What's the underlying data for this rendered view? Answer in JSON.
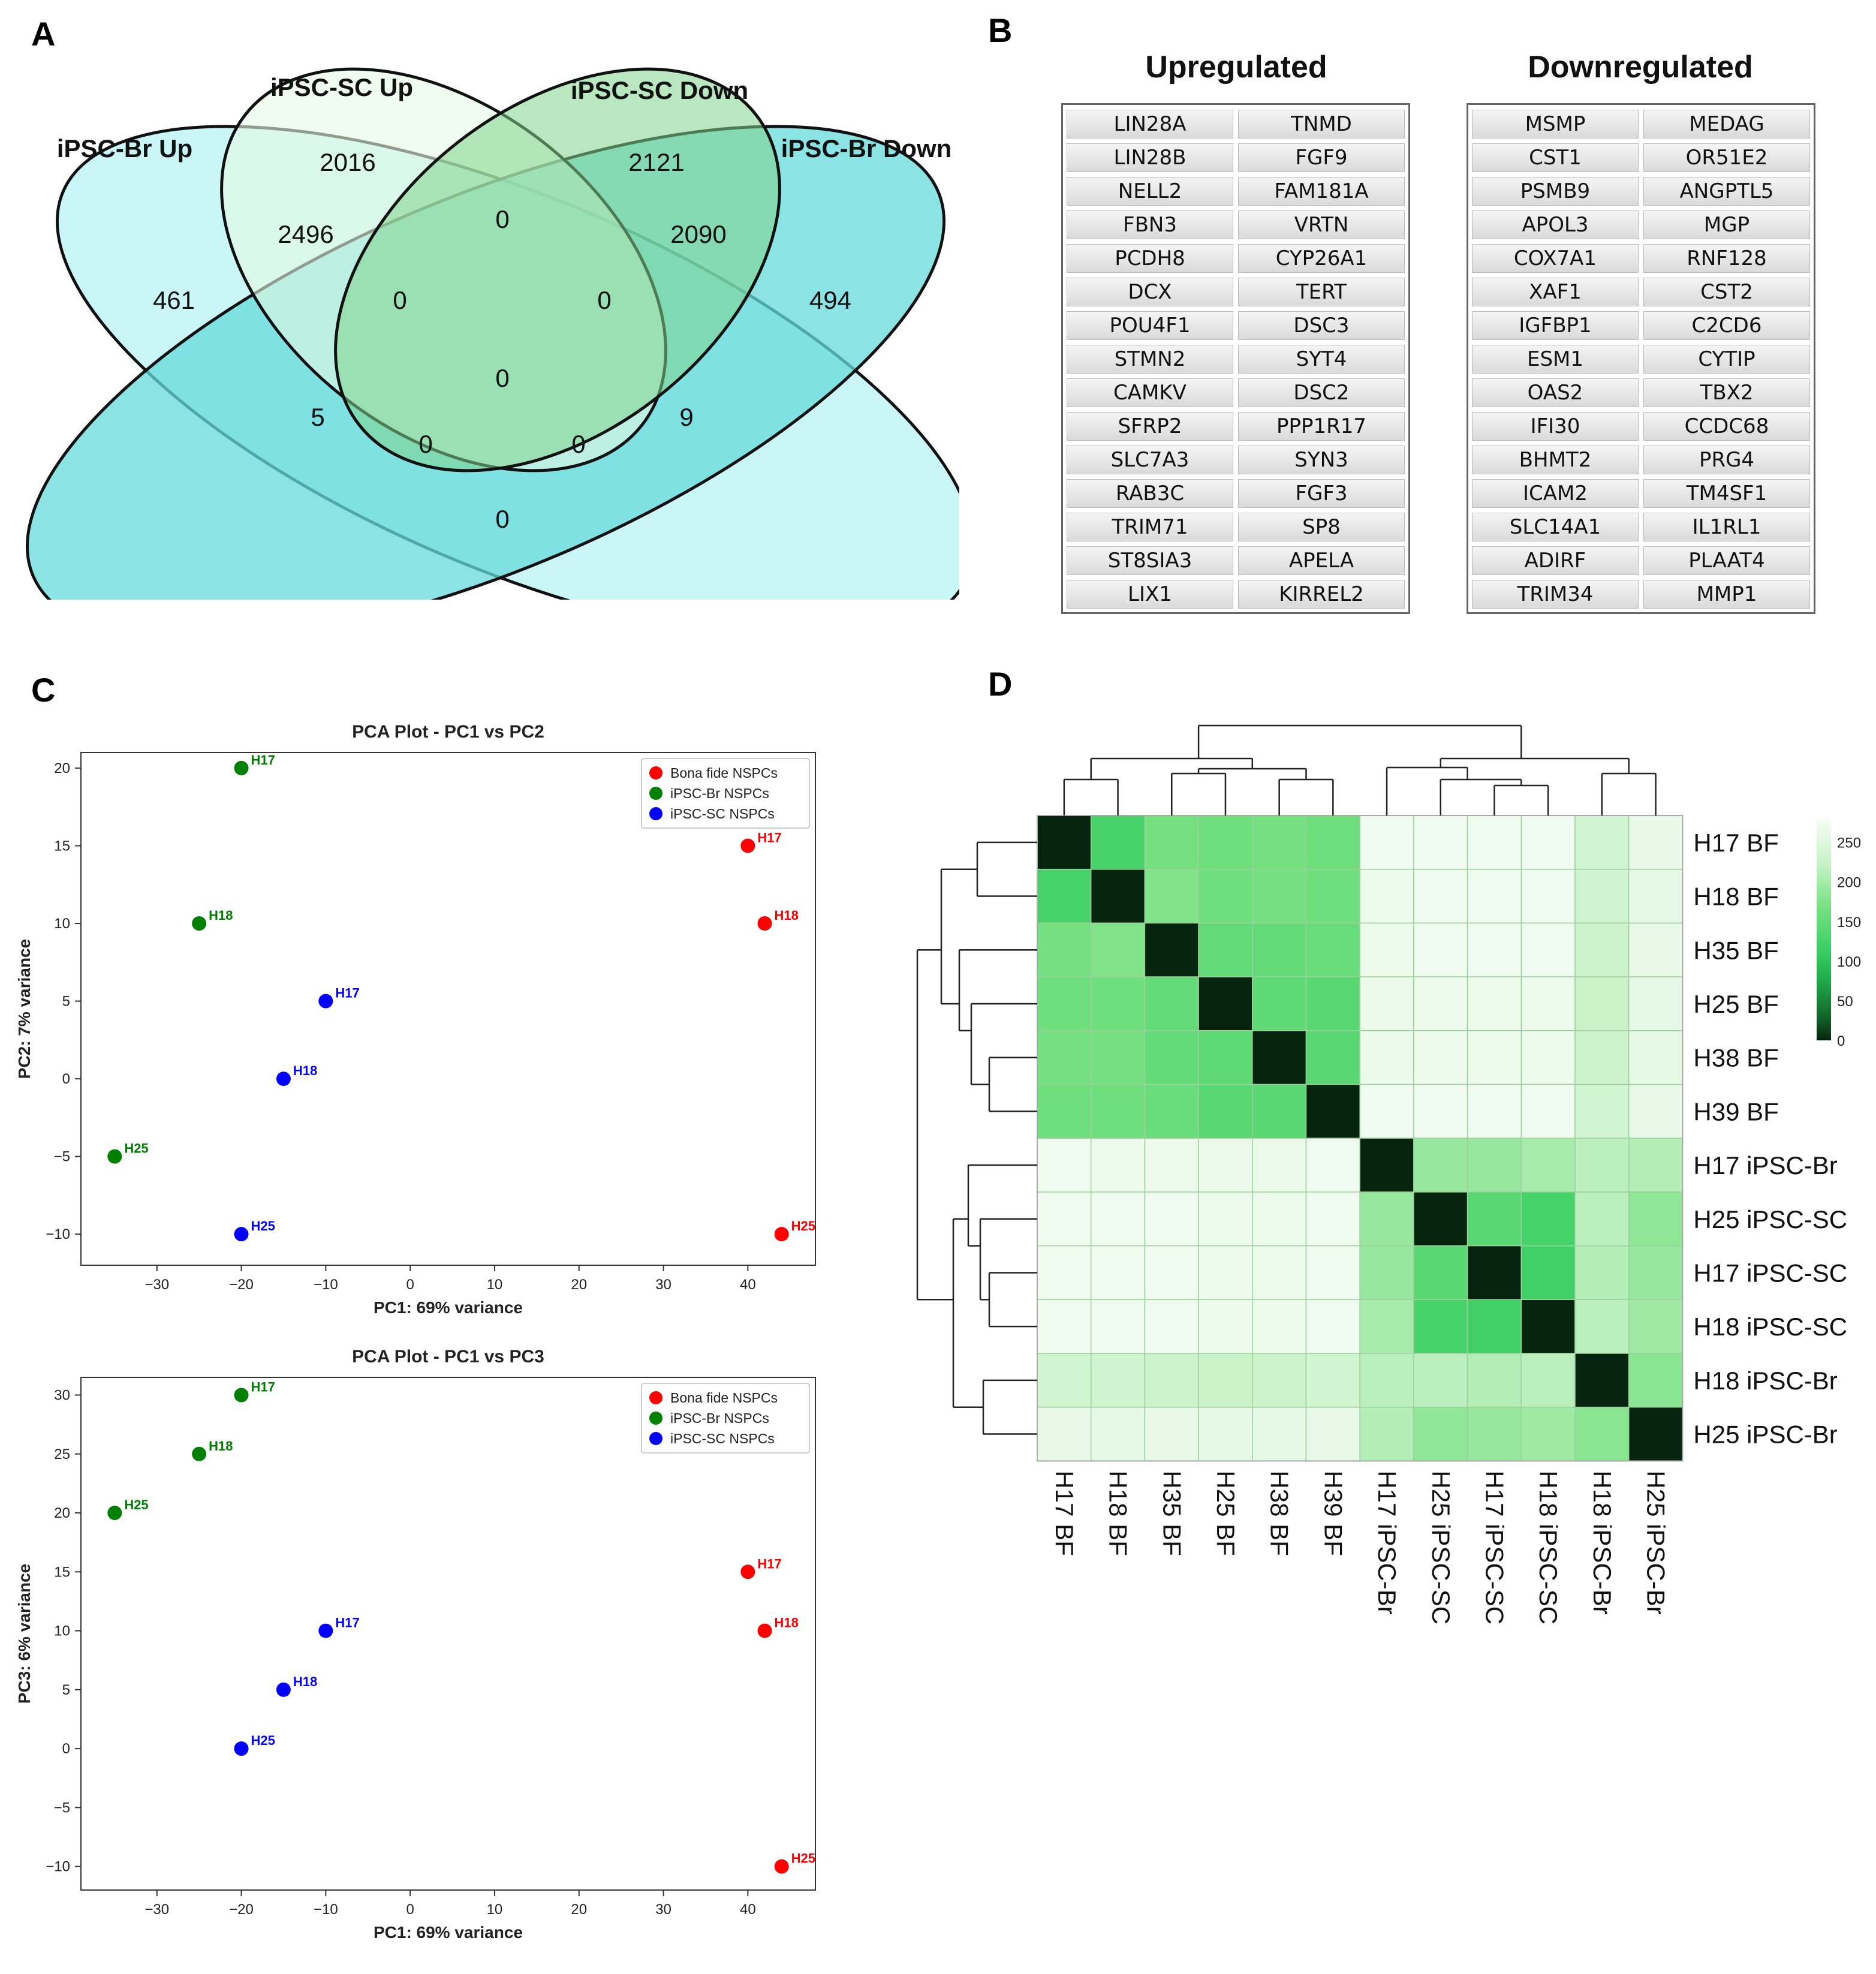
{
  "panels": {
    "a": "A",
    "b": "B",
    "c": "C",
    "d": "D"
  },
  "venn": {
    "set_labels": {
      "br_up": "iPSC-Br Up",
      "sc_up": "iPSC-SC Up",
      "sc_down": "iPSC-SC Down",
      "br_down": "iPSC-Br Down"
    },
    "counts": {
      "br_up_only": "461",
      "sc_up_only": "2016",
      "sc_down_only": "2121",
      "br_down_only": "494",
      "brup_scup": "2496",
      "scup_scdown": "0",
      "scdown_brdown": "2090",
      "brup_scdown": "0",
      "scup_brdown": "0",
      "all_four": "0",
      "brup_scup_scdown": "5",
      "scup_scdown_brdown": "9",
      "brup_scdown_brdown": "0",
      "brup_scup_brdown": "0",
      "brup_brdown": "0"
    },
    "colors": {
      "br_up": "#c8f6f8",
      "sc_up": "#e6fae4",
      "sc_down": "#7fd48d",
      "br_down": "#66dada"
    }
  },
  "genes": {
    "up_title": "Upregulated",
    "down_title": "Downregulated",
    "up": [
      [
        "LIN28A",
        "TNMD"
      ],
      [
        "LIN28B",
        "FGF9"
      ],
      [
        "NELL2",
        "FAM181A"
      ],
      [
        "FBN3",
        "VRTN"
      ],
      [
        "PCDH8",
        "CYP26A1"
      ],
      [
        "DCX",
        "TERT"
      ],
      [
        "POU4F1",
        "DSC3"
      ],
      [
        "STMN2",
        "SYT4"
      ],
      [
        "CAMKV",
        "DSC2"
      ],
      [
        "SFRP2",
        "PPP1R17"
      ],
      [
        "SLC7A3",
        "SYN3"
      ],
      [
        "RAB3C",
        "FGF3"
      ],
      [
        "TRIM71",
        "SP8"
      ],
      [
        "ST8SIA3",
        "APELA"
      ],
      [
        "LIX1",
        "KIRREL2"
      ]
    ],
    "down": [
      [
        "MSMP",
        "MEDAG"
      ],
      [
        "CST1",
        "OR51E2"
      ],
      [
        "PSMB9",
        "ANGPTL5"
      ],
      [
        "APOL3",
        "MGP"
      ],
      [
        "COX7A1",
        "RNF128"
      ],
      [
        "XAF1",
        "CST2"
      ],
      [
        "IGFBP1",
        "C2CD6"
      ],
      [
        "ESM1",
        "CYTIP"
      ],
      [
        "OAS2",
        "TBX2"
      ],
      [
        "IFI30",
        "CCDC68"
      ],
      [
        "BHMT2",
        "PRG4"
      ],
      [
        "ICAM2",
        "TM4SF1"
      ],
      [
        "SLC14A1",
        "IL1RL1"
      ],
      [
        "ADIRF",
        "PLAAT4"
      ],
      [
        "TRIM34",
        "MMP1"
      ]
    ]
  },
  "chart_data": [
    {
      "type": "scatter",
      "title": "PCA Plot - PC1 vs PC2",
      "xlabel": "PC1: 69% variance",
      "ylabel": "PC2: 7% variance",
      "xlim": [
        -39,
        48
      ],
      "ylim": [
        -12,
        21
      ],
      "xticks": [
        -30,
        -20,
        -10,
        0,
        10,
        20,
        30,
        40
      ],
      "yticks": [
        -10,
        -5,
        0,
        5,
        10,
        15,
        20
      ],
      "xtick_labels": [
        "−30",
        "−20",
        "−10",
        "0",
        "10",
        "20",
        "30",
        "40"
      ],
      "ytick_labels": [
        "−10",
        "−5",
        "0",
        "5",
        "10",
        "15",
        "20"
      ],
      "legend": [
        "Bona fide NSPCs",
        "iPSC-Br NSPCs",
        "iPSC-SC NSPCs"
      ],
      "legend_position": "top-right",
      "series": [
        {
          "name": "Bona fide NSPCs",
          "color": "#ff0000",
          "points": [
            {
              "x": 40,
              "y": 15,
              "label": "H17"
            },
            {
              "x": 42,
              "y": 10,
              "label": "H18"
            },
            {
              "x": 44,
              "y": -10,
              "label": "H25"
            }
          ]
        },
        {
          "name": "iPSC-Br NSPCs",
          "color": "#008000",
          "points": [
            {
              "x": -20,
              "y": 20,
              "label": "H17"
            },
            {
              "x": -25,
              "y": 10,
              "label": "H18"
            },
            {
              "x": -35,
              "y": -5,
              "label": "H25"
            }
          ]
        },
        {
          "name": "iPSC-SC NSPCs",
          "color": "#0000ff",
          "points": [
            {
              "x": -10,
              "y": 5,
              "label": "H17"
            },
            {
              "x": -15,
              "y": 0,
              "label": "H18"
            },
            {
              "x": -20,
              "y": -10,
              "label": "H25"
            }
          ]
        }
      ]
    },
    {
      "type": "scatter",
      "title": "PCA Plot - PC1 vs PC3",
      "xlabel": "PC1: 69% variance",
      "ylabel": "PC3: 6% variance",
      "xlim": [
        -39,
        48
      ],
      "ylim": [
        -12,
        31.5
      ],
      "xticks": [
        -30,
        -20,
        -10,
        0,
        10,
        20,
        30,
        40
      ],
      "yticks": [
        -10,
        -5,
        0,
        5,
        10,
        15,
        20,
        25,
        30
      ],
      "xtick_labels": [
        "−30",
        "−20",
        "−10",
        "0",
        "10",
        "20",
        "30",
        "40"
      ],
      "ytick_labels": [
        "−10",
        "−5",
        "0",
        "5",
        "10",
        "15",
        "20",
        "25",
        "30"
      ],
      "legend": [
        "Bona fide NSPCs",
        "iPSC-Br NSPCs",
        "iPSC-SC NSPCs"
      ],
      "legend_position": "top-right",
      "series": [
        {
          "name": "Bona fide NSPCs",
          "color": "#ff0000",
          "points": [
            {
              "x": 40,
              "y": 15,
              "label": "H17"
            },
            {
              "x": 42,
              "y": 10,
              "label": "H18"
            },
            {
              "x": 44,
              "y": -10,
              "label": "H25"
            }
          ]
        },
        {
          "name": "iPSC-Br NSPCs",
          "color": "#008000",
          "points": [
            {
              "x": -20,
              "y": 30,
              "label": "H17"
            },
            {
              "x": -25,
              "y": 25,
              "label": "H18"
            },
            {
              "x": -35,
              "y": 20,
              "label": "H25"
            }
          ]
        },
        {
          "name": "iPSC-SC NSPCs",
          "color": "#0000ff",
          "points": [
            {
              "x": -10,
              "y": 10,
              "label": "H17"
            },
            {
              "x": -15,
              "y": 5,
              "label": "H18"
            },
            {
              "x": -20,
              "y": 0,
              "label": "H25"
            }
          ]
        }
      ]
    },
    {
      "type": "heatmap",
      "title": "",
      "labels": [
        "H17 BF",
        "H18 BF",
        "H35 BF",
        "H25 BF",
        "H38 BF",
        "H39 BF",
        "H17 iPSC-Br",
        "H25 iPSC-SC",
        "H17 iPSC-SC",
        "H18 iPSC-SC",
        "H18 iPSC-Br",
        "H25 iPSC-Br"
      ],
      "colorbar": {
        "min": 0,
        "max": 280,
        "ticks": [
          0,
          50,
          100,
          150,
          200,
          250
        ]
      },
      "values": [
        [
          0,
          125,
          165,
          160,
          165,
          160,
          270,
          272,
          272,
          272,
          235,
          262
        ],
        [
          125,
          0,
          175,
          160,
          165,
          160,
          268,
          270,
          270,
          270,
          232,
          260
        ],
        [
          165,
          175,
          0,
          150,
          150,
          155,
          268,
          270,
          270,
          270,
          230,
          262
        ],
        [
          160,
          160,
          150,
          0,
          145,
          140,
          265,
          268,
          268,
          268,
          225,
          260
        ],
        [
          165,
          165,
          150,
          145,
          0,
          140,
          265,
          268,
          268,
          268,
          230,
          258
        ],
        [
          160,
          160,
          155,
          140,
          140,
          0,
          270,
          270,
          270,
          272,
          235,
          262
        ],
        [
          270,
          268,
          268,
          265,
          265,
          270,
          0,
          190,
          190,
          200,
          215,
          210
        ],
        [
          272,
          270,
          270,
          268,
          268,
          270,
          190,
          0,
          140,
          125,
          215,
          185
        ],
        [
          272,
          270,
          270,
          268,
          268,
          270,
          190,
          140,
          0,
          120,
          210,
          190
        ],
        [
          272,
          270,
          270,
          268,
          268,
          272,
          200,
          125,
          120,
          0,
          215,
          195
        ],
        [
          235,
          232,
          230,
          225,
          230,
          235,
          215,
          215,
          210,
          215,
          0,
          180
        ],
        [
          262,
          260,
          262,
          260,
          258,
          262,
          210,
          185,
          190,
          195,
          180,
          0
        ]
      ]
    }
  ]
}
